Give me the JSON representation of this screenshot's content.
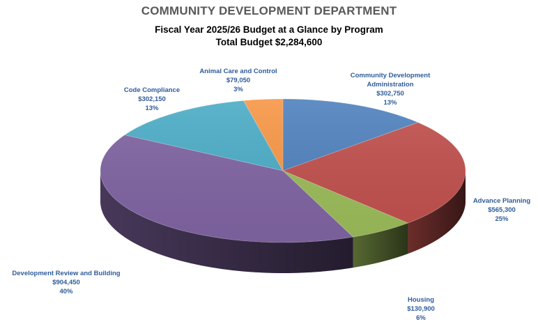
{
  "chart_data": {
    "type": "pie",
    "title": "COMMUNITY DEVELOPMENT DEPARTMENT",
    "subtitle_lines": [
      "Fiscal Year 2025/26  Budget at a Glance by Program",
      "Total Budget $2,284,600"
    ],
    "slices": [
      {
        "name_lines": [
          "Community Development",
          "Administration"
        ],
        "value": 302750,
        "value_label": "$302,750",
        "percent_label": "13%",
        "color": "#4f81bd"
      },
      {
        "name_lines": [
          "Advance Planning"
        ],
        "value": 565300,
        "value_label": "$565,300",
        "percent_label": "25%",
        "color": "#c0504d"
      },
      {
        "name_lines": [
          "Housing"
        ],
        "value": 130900,
        "value_label": "$130,900",
        "percent_label": "6%",
        "color": "#9bbb59"
      },
      {
        "name_lines": [
          "Development Review and Building"
        ],
        "value": 904450,
        "value_label": "$904,450",
        "percent_label": "40%",
        "color": "#8064a2"
      },
      {
        "name_lines": [
          "Code Compliance"
        ],
        "value": 302150,
        "value_label": "$302,150",
        "percent_label": "13%",
        "color": "#4bacc6"
      },
      {
        "name_lines": [
          "Animal Care and Control"
        ],
        "value": 79050,
        "value_label": "$79,050",
        "percent_label": "3%",
        "color": "#f79646"
      }
    ],
    "style": "3d-pie",
    "label_color": "#2e5c9b"
  }
}
